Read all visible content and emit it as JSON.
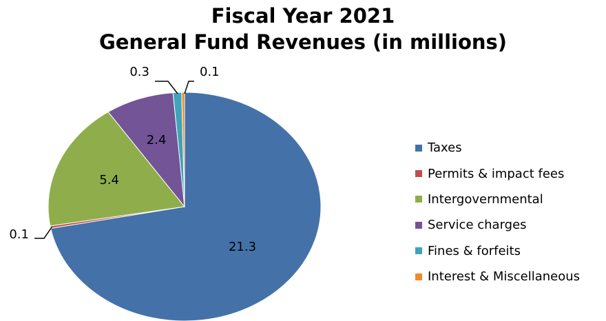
{
  "chart_data": {
    "type": "pie",
    "title": "Fiscal Year 2021",
    "subtitle": "General Fund Revenues (in millions)",
    "legend_position": "right",
    "slices": [
      {
        "label": "Taxes",
        "value": 21.3,
        "display": "21.3",
        "color": "#4472A8"
      },
      {
        "label": "Permits & impact fees",
        "value": 0.1,
        "display": "0.1",
        "color": "#C0504D"
      },
      {
        "label": "Intergovernmental",
        "value": 5.4,
        "display": "5.4",
        "color": "#8FAE4B"
      },
      {
        "label": "Service charges",
        "value": 2.4,
        "display": "2.4",
        "color": "#735496"
      },
      {
        "label": "Fines & forfeits",
        "value": 0.3,
        "display": "0.3",
        "color": "#3FA4B8"
      },
      {
        "label": "Interest & Miscellaneous",
        "value": 0.1,
        "display": "0.1",
        "color": "#F08A2B"
      }
    ]
  }
}
